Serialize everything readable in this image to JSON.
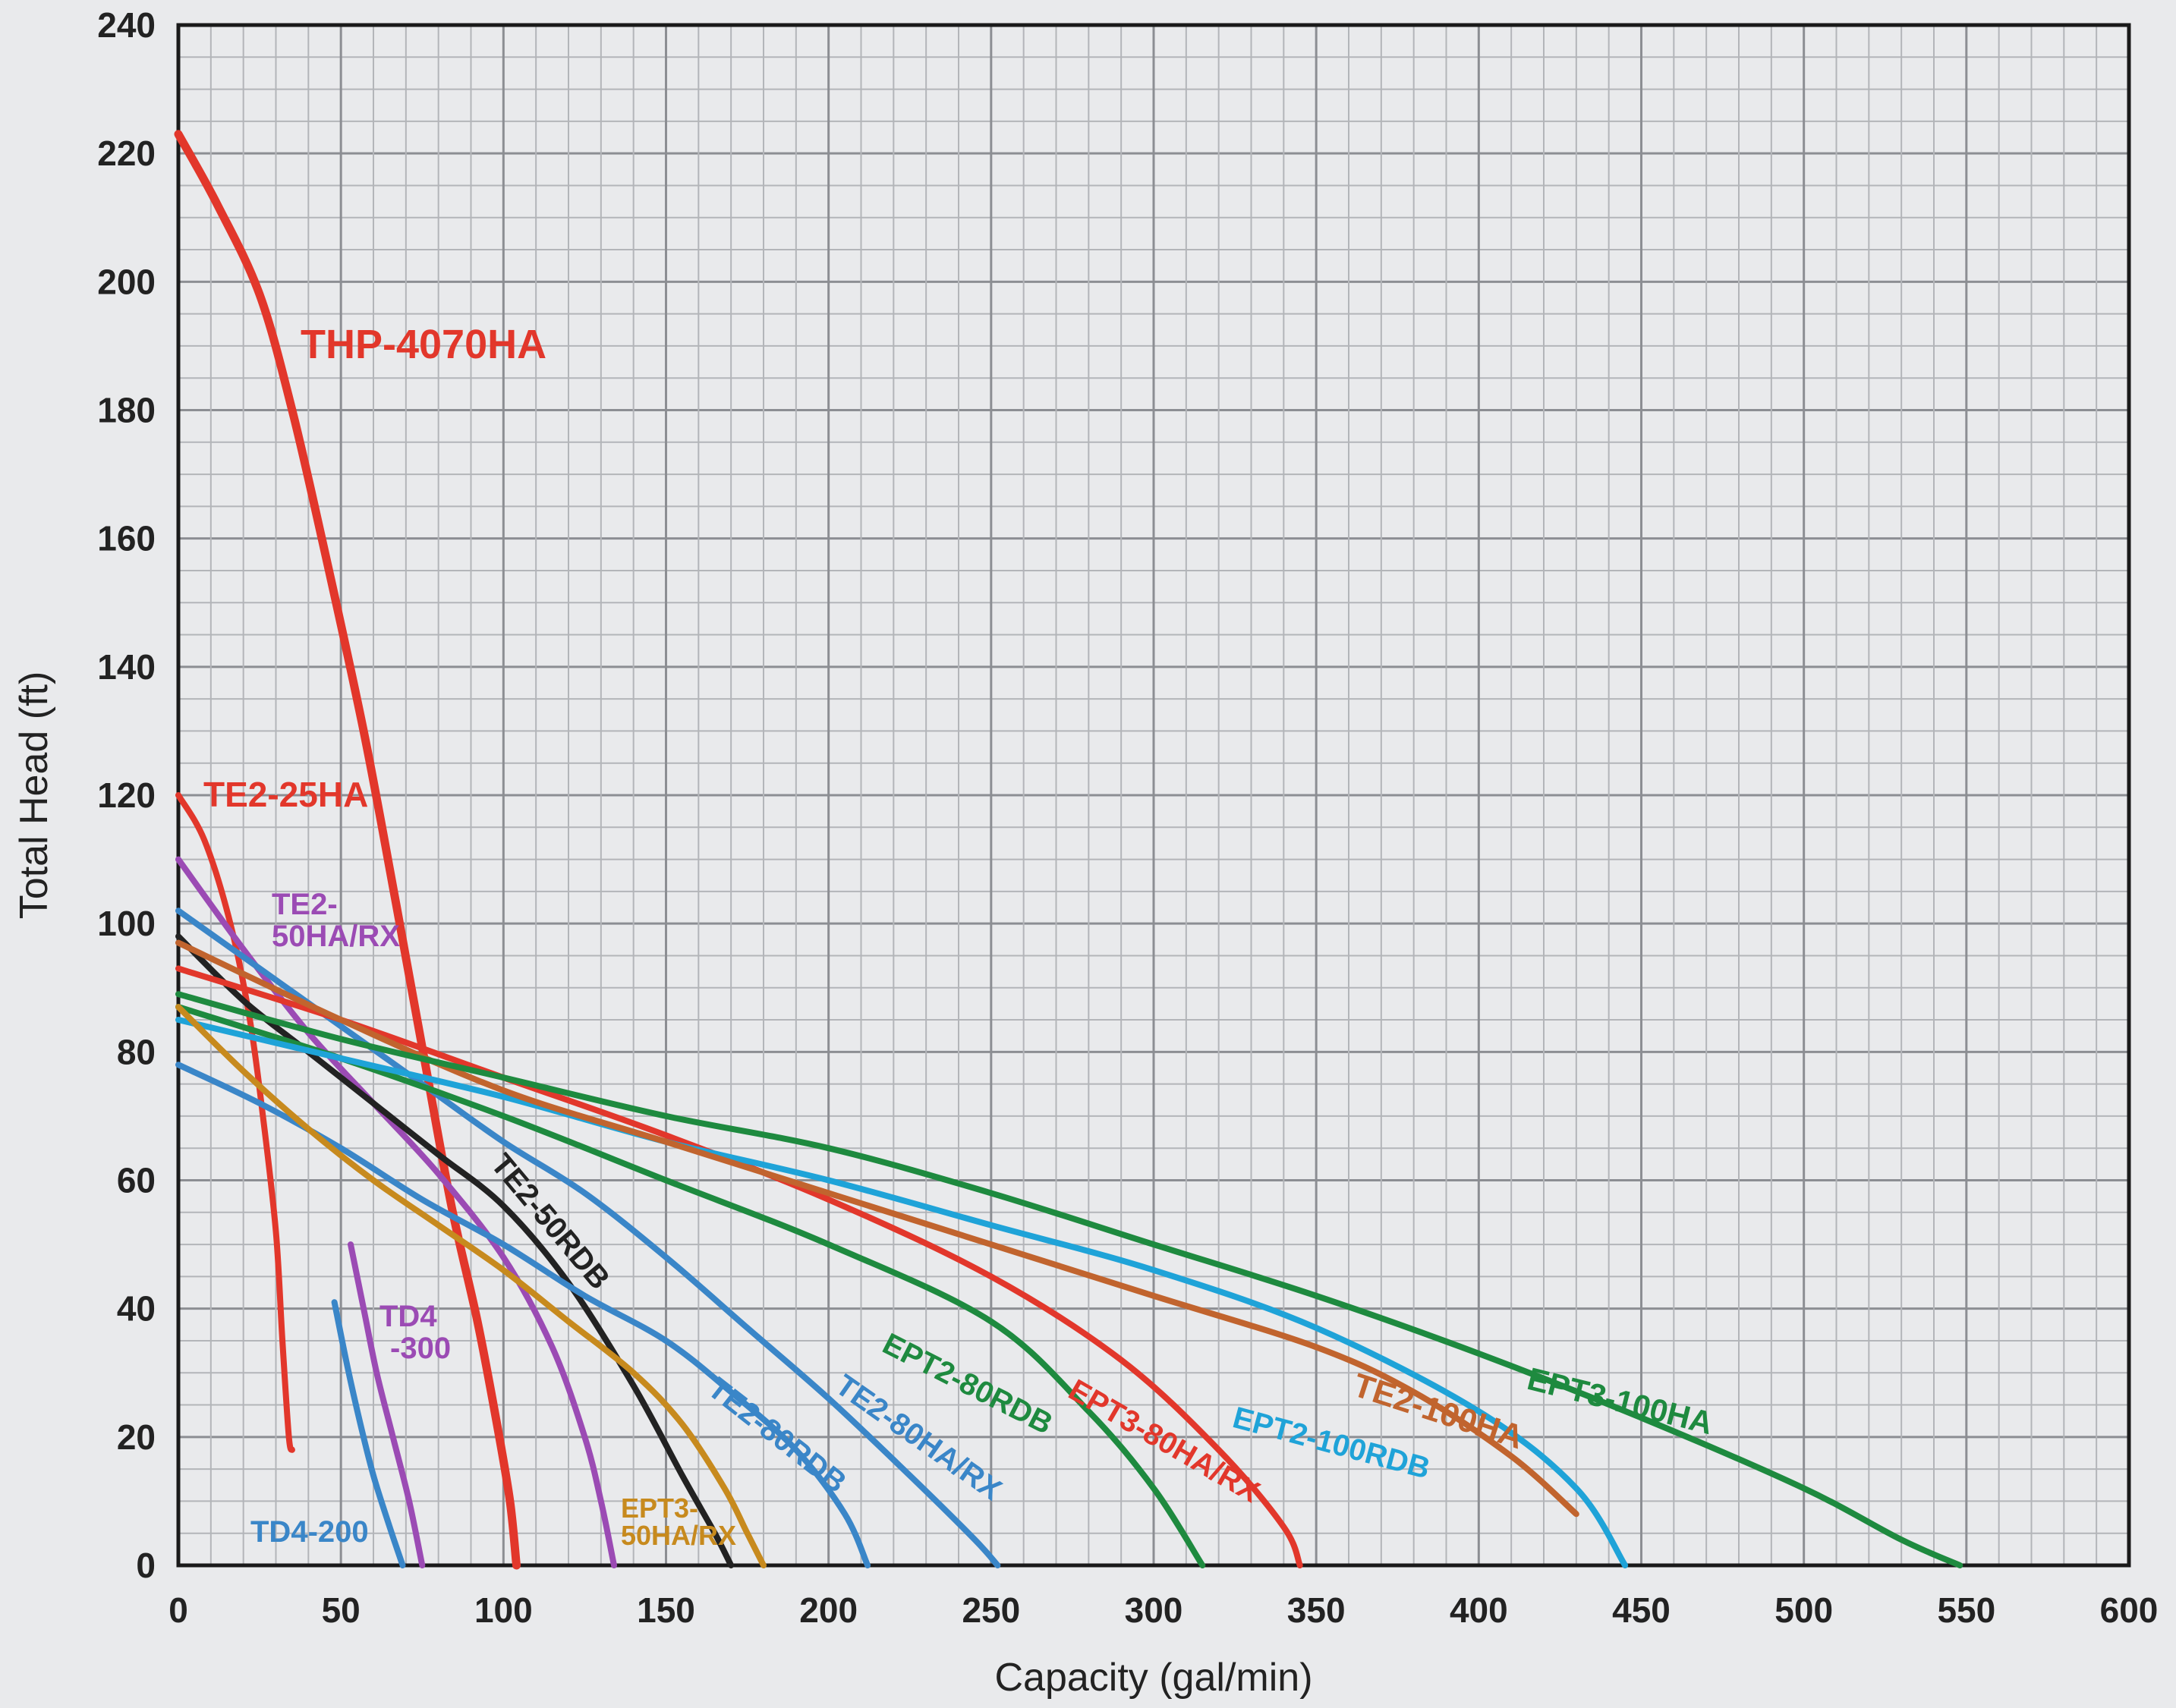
{
  "chart_data": {
    "type": "line",
    "title": "",
    "xlabel": "Capacity (gal/min)",
    "ylabel": "Total Head (ft)",
    "xlim": [
      0,
      600
    ],
    "ylim": [
      0,
      240
    ],
    "x_ticks": [
      0,
      50,
      100,
      150,
      200,
      250,
      300,
      350,
      400,
      450,
      500,
      550,
      600
    ],
    "y_ticks": [
      0,
      20,
      40,
      60,
      80,
      100,
      120,
      140,
      160,
      180,
      200,
      220,
      240
    ],
    "grid": true,
    "legend": "none (curves labeled inline)",
    "series": [
      {
        "name": "THP-4070HA",
        "color": "#e2372b",
        "points": [
          [
            0,
            223
          ],
          [
            12,
            212
          ],
          [
            25,
            198
          ],
          [
            35,
            180
          ],
          [
            45,
            158
          ],
          [
            57,
            130
          ],
          [
            67,
            103
          ],
          [
            76,
            78
          ],
          [
            84,
            56
          ],
          [
            92,
            38
          ],
          [
            98,
            22
          ],
          [
            102,
            10
          ],
          [
            104,
            0
          ]
        ]
      },
      {
        "name": "TE2-25HA",
        "color": "#e2372b",
        "points": [
          [
            0,
            120
          ],
          [
            8,
            113
          ],
          [
            16,
            100
          ],
          [
            22,
            85
          ],
          [
            26,
            70
          ],
          [
            30,
            52
          ],
          [
            32,
            35
          ],
          [
            34,
            20
          ],
          [
            35,
            18
          ]
        ]
      },
      {
        "name": "TE2-50HA/RX",
        "color": "#9b4bb4",
        "points": [
          [
            0,
            110
          ],
          [
            20,
            96
          ],
          [
            40,
            83
          ],
          [
            60,
            72
          ],
          [
            80,
            61
          ],
          [
            100,
            48
          ],
          [
            115,
            34
          ],
          [
            125,
            20
          ],
          [
            130,
            10
          ],
          [
            134,
            0
          ]
        ]
      },
      {
        "name": "TE2-50RDB",
        "color": "#222222",
        "points": [
          [
            0,
            98
          ],
          [
            20,
            88
          ],
          [
            40,
            80
          ],
          [
            60,
            72
          ],
          [
            80,
            64
          ],
          [
            100,
            56
          ],
          [
            120,
            44
          ],
          [
            140,
            28
          ],
          [
            155,
            14
          ],
          [
            165,
            5
          ],
          [
            170,
            0
          ]
        ]
      },
      {
        "name": "TE2-80RDB",
        "color": "#3a86c8",
        "points": [
          [
            0,
            78
          ],
          [
            25,
            72
          ],
          [
            50,
            65
          ],
          [
            75,
            57
          ],
          [
            100,
            50
          ],
          [
            125,
            42
          ],
          [
            150,
            35
          ],
          [
            170,
            27
          ],
          [
            190,
            18
          ],
          [
            205,
            8
          ],
          [
            212,
            0
          ]
        ]
      },
      {
        "name": "TE2-80HA/RX",
        "color": "#3a86c8",
        "points": [
          [
            0,
            102
          ],
          [
            25,
            93
          ],
          [
            50,
            84
          ],
          [
            75,
            75
          ],
          [
            100,
            66
          ],
          [
            125,
            58
          ],
          [
            150,
            48
          ],
          [
            175,
            37
          ],
          [
            200,
            26
          ],
          [
            225,
            14
          ],
          [
            245,
            4
          ],
          [
            252,
            0
          ]
        ]
      },
      {
        "name": "EPT2-80RDB",
        "color": "#1e8a3f",
        "points": [
          [
            0,
            87
          ],
          [
            50,
            79
          ],
          [
            100,
            70
          ],
          [
            150,
            60
          ],
          [
            200,
            50
          ],
          [
            250,
            38
          ],
          [
            280,
            24
          ],
          [
            300,
            12
          ],
          [
            315,
            0
          ]
        ]
      },
      {
        "name": "EPT3-80HA/RX",
        "color": "#e2372b",
        "points": [
          [
            0,
            93
          ],
          [
            50,
            85
          ],
          [
            100,
            76
          ],
          [
            150,
            67
          ],
          [
            200,
            57
          ],
          [
            250,
            45
          ],
          [
            290,
            32
          ],
          [
            320,
            18
          ],
          [
            340,
            6
          ],
          [
            345,
            0
          ]
        ]
      },
      {
        "name": "EPT2-100RDB",
        "color": "#1fa3d8",
        "points": [
          [
            0,
            85
          ],
          [
            50,
            79
          ],
          [
            100,
            73
          ],
          [
            150,
            66
          ],
          [
            200,
            60
          ],
          [
            250,
            53
          ],
          [
            300,
            46
          ],
          [
            350,
            37
          ],
          [
            400,
            24
          ],
          [
            430,
            12
          ],
          [
            445,
            0
          ]
        ]
      },
      {
        "name": "TE2-100HA",
        "color": "#c1642e",
        "points": [
          [
            0,
            97
          ],
          [
            50,
            85
          ],
          [
            100,
            74
          ],
          [
            150,
            66
          ],
          [
            200,
            58
          ],
          [
            250,
            50
          ],
          [
            300,
            42
          ],
          [
            350,
            34
          ],
          [
            380,
            27
          ],
          [
            410,
            17
          ],
          [
            430,
            8
          ]
        ]
      },
      {
        "name": "EPT3-100HA",
        "color": "#1e8a3f",
        "points": [
          [
            0,
            89
          ],
          [
            50,
            82
          ],
          [
            100,
            76
          ],
          [
            150,
            70
          ],
          [
            200,
            65
          ],
          [
            250,
            58
          ],
          [
            300,
            50
          ],
          [
            350,
            42
          ],
          [
            400,
            33
          ],
          [
            450,
            23
          ],
          [
            500,
            12
          ],
          [
            530,
            4
          ],
          [
            548,
            0
          ]
        ]
      },
      {
        "name": "EPT3-50HA/RX",
        "color": "#c78a1e",
        "points": [
          [
            0,
            87
          ],
          [
            20,
            77
          ],
          [
            40,
            68
          ],
          [
            60,
            60
          ],
          [
            80,
            53
          ],
          [
            100,
            46
          ],
          [
            120,
            38
          ],
          [
            140,
            30
          ],
          [
            155,
            22
          ],
          [
            168,
            12
          ],
          [
            175,
            5
          ],
          [
            180,
            0
          ]
        ]
      },
      {
        "name": "TD4-300",
        "color": "#9b4bb4",
        "points": [
          [
            53,
            50
          ],
          [
            57,
            40
          ],
          [
            61,
            30
          ],
          [
            66,
            20
          ],
          [
            71,
            10
          ],
          [
            75,
            0
          ]
        ]
      },
      {
        "name": "TD4-200",
        "color": "#3a86c8",
        "points": [
          [
            48,
            41
          ],
          [
            52,
            31
          ],
          [
            56,
            22
          ],
          [
            60,
            14
          ],
          [
            65,
            6
          ],
          [
            69,
            0
          ]
        ]
      }
    ],
    "labels": [
      {
        "series": "THP-4070HA",
        "text": "THP-4070HA",
        "color": "#e2372b"
      },
      {
        "series": "TE2-25HA",
        "text": "TE2-25HA",
        "color": "#e2372b"
      },
      {
        "series": "TE2-50HA/RX",
        "lines": [
          "TE2-",
          "50HA/RX"
        ],
        "color": "#9b4bb4"
      },
      {
        "series": "TE2-50RDB",
        "text": "TE2-50RDB",
        "color": "#222222"
      },
      {
        "series": "TE2-80RDB",
        "text": "TE2-80RDB",
        "color": "#3a86c8"
      },
      {
        "series": "TE2-80HA/RX",
        "text": "TE2-80HA/RX",
        "color": "#3a86c8"
      },
      {
        "series": "EPT2-80RDB",
        "text": "EPT2-80RDB",
        "color": "#1e8a3f"
      },
      {
        "series": "EPT3-80HA/RX",
        "text": "EPT3-80HA/RX",
        "color": "#e2372b"
      },
      {
        "series": "EPT2-100RDB",
        "text": "EPT2-100RDB",
        "color": "#1fa3d8"
      },
      {
        "series": "TE2-100HA",
        "text": "TE2-100HA",
        "color": "#c1642e"
      },
      {
        "series": "EPT3-100HA",
        "text": "EPT3-100HA",
        "color": "#1e8a3f"
      },
      {
        "series": "EPT3-50HA/RX",
        "lines": [
          "EPT3-",
          "50HA/RX"
        ],
        "color": "#c78a1e"
      },
      {
        "series": "TD4-300",
        "lines": [
          "TD4",
          "-300"
        ],
        "color": "#9b4bb4"
      },
      {
        "series": "TD4-200",
        "text": "TD4-200",
        "color": "#3a86c8"
      }
    ]
  }
}
